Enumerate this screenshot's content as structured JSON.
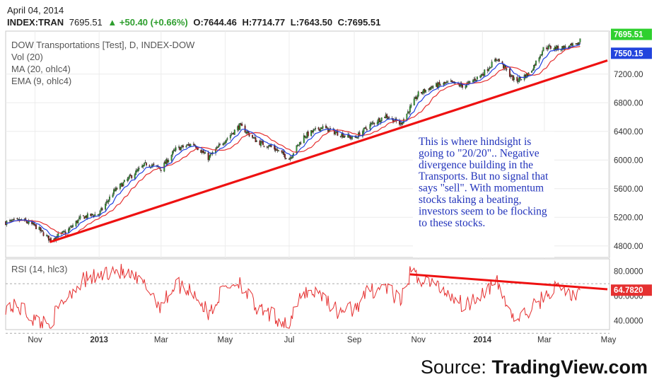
{
  "header": {
    "date": "April 04, 2014",
    "symbol": "INDEX:TRAN",
    "last": "7695.51",
    "change": "▲ +50.40 (+0.66%)",
    "open": "O:7644.46",
    "high": "H:7714.77",
    "low": "L:7643.50",
    "close": "C:7695.51"
  },
  "legend": {
    "title": "DOW Transportations [Test], D, INDEX-DOW",
    "vol": "Vol (20)",
    "ma": "MA (20, ohlc4)",
    "ema": "EMA (9, ohlc4)",
    "rsi": "RSI (14, hlc3)"
  },
  "annotation": "This is where hindsight is going to \"20/20\".. Negative divergence building in the Transports. But no signal that says \"sell\". With momentum stocks taking a beating, investors seem to be flocking to these stocks.",
  "source": {
    "prefix": "Source: ",
    "brand": "TradingView.com"
  },
  "colors": {
    "up": "#2e9e2e",
    "down": "#8b1a1a",
    "ma": "#e53030",
    "ema": "#2040e0",
    "trend": "#ee1111",
    "rsi": "#e53030"
  },
  "chart_data": {
    "type": "candlestick",
    "price_axis": {
      "ticks": [
        4800,
        5200,
        5600,
        6000,
        6400,
        6800,
        7200
      ],
      "tick_labels": [
        "4800.00",
        "5200.00",
        "5600.00",
        "6000.00",
        "6400.00",
        "6800.00",
        "7200.00"
      ],
      "range": [
        4640,
        7800
      ]
    },
    "x_labels": [
      "Nov",
      "2013",
      "Mar",
      "May",
      "Jul",
      "Sep",
      "Nov",
      "2014",
      "Mar",
      "May"
    ],
    "x_dates": [
      "2012-11-01",
      "2013-01-01",
      "2013-03-01",
      "2013-05-01",
      "2013-07-01",
      "2013-09-01",
      "2013-11-01",
      "2014-01-01",
      "2014-03-01",
      "2014-05-01"
    ],
    "x_range": [
      "2012-10-04",
      "2014-05-02"
    ],
    "price_labels": [
      {
        "text": "7695.51",
        "value": 7695.51,
        "color": "#2fd02f"
      },
      {
        "text": "7550.15",
        "value": 7550.15,
        "color": "#2244dd"
      }
    ],
    "trendline": {
      "start": [
        "2012-11-15",
        4855
      ],
      "end": [
        "2014-04-30",
        7390
      ]
    },
    "price_points": [
      [
        "2012-10-04",
        5130
      ],
      [
        "2012-10-20",
        5160
      ],
      [
        "2012-11-01",
        5080
      ],
      [
        "2012-11-15",
        4890
      ],
      [
        "2012-12-01",
        5000
      ],
      [
        "2012-12-15",
        5200
      ],
      [
        "2013-01-01",
        5250
      ],
      [
        "2013-01-15",
        5560
      ],
      [
        "2013-02-01",
        5780
      ],
      [
        "2013-02-15",
        5950
      ],
      [
        "2013-03-01",
        5880
      ],
      [
        "2013-03-15",
        6150
      ],
      [
        "2013-04-01",
        6230
      ],
      [
        "2013-04-15",
        6030
      ],
      [
        "2013-05-01",
        6280
      ],
      [
        "2013-05-15",
        6480
      ],
      [
        "2013-06-01",
        6250
      ],
      [
        "2013-06-15",
        6180
      ],
      [
        "2013-07-01",
        6020
      ],
      [
        "2013-07-15",
        6330
      ],
      [
        "2013-08-01",
        6460
      ],
      [
        "2013-08-15",
        6380
      ],
      [
        "2013-09-01",
        6300
      ],
      [
        "2013-09-15",
        6480
      ],
      [
        "2013-10-01",
        6620
      ],
      [
        "2013-10-15",
        6500
      ],
      [
        "2013-11-01",
        6920
      ],
      [
        "2013-11-15",
        7030
      ],
      [
        "2013-12-01",
        7080
      ],
      [
        "2013-12-15",
        7030
      ],
      [
        "2014-01-01",
        7200
      ],
      [
        "2014-01-15",
        7420
      ],
      [
        "2014-02-01",
        7100
      ],
      [
        "2014-02-15",
        7210
      ],
      [
        "2014-03-01",
        7580
      ],
      [
        "2014-03-15",
        7560
      ],
      [
        "2014-04-01",
        7600
      ],
      [
        "2014-04-06",
        7695.51
      ]
    ],
    "rsi": {
      "ticks": [
        40,
        60,
        80
      ],
      "tick_labels": [
        "40.0000",
        "60.0000",
        "80.0000"
      ],
      "range": [
        33,
        90
      ],
      "last": {
        "text": "64.7820",
        "value": 64.782
      },
      "trendline": {
        "start": [
          "2013-10-24",
          77.5
        ],
        "end": [
          "2014-04-30",
          65.5
        ]
      },
      "points": [
        [
          "2012-10-04",
          52
        ],
        [
          "2012-10-20",
          50
        ],
        [
          "2012-11-01",
          40
        ],
        [
          "2012-11-15",
          38
        ],
        [
          "2012-12-01",
          60
        ],
        [
          "2012-12-15",
          72
        ],
        [
          "2013-01-01",
          76
        ],
        [
          "2013-01-15",
          82
        ],
        [
          "2013-02-01",
          75
        ],
        [
          "2013-02-15",
          68
        ],
        [
          "2013-03-01",
          52
        ],
        [
          "2013-03-15",
          70
        ],
        [
          "2013-04-01",
          64
        ],
        [
          "2013-04-15",
          45
        ],
        [
          "2013-05-01",
          68
        ],
        [
          "2013-05-15",
          72
        ],
        [
          "2013-06-01",
          48
        ],
        [
          "2013-06-15",
          44
        ],
        [
          "2013-07-01",
          37
        ],
        [
          "2013-07-15",
          64
        ],
        [
          "2013-08-01",
          62
        ],
        [
          "2013-08-15",
          48
        ],
        [
          "2013-09-01",
          50
        ],
        [
          "2013-09-15",
          64
        ],
        [
          "2013-10-01",
          68
        ],
        [
          "2013-10-15",
          54
        ],
        [
          "2013-10-24",
          78
        ],
        [
          "2013-11-15",
          70
        ],
        [
          "2013-12-01",
          62
        ],
        [
          "2013-12-15",
          52
        ],
        [
          "2014-01-01",
          64
        ],
        [
          "2014-01-15",
          70
        ],
        [
          "2014-02-01",
          40
        ],
        [
          "2014-02-15",
          48
        ],
        [
          "2014-03-01",
          60
        ],
        [
          "2014-03-15",
          68
        ],
        [
          "2014-04-01",
          58
        ],
        [
          "2014-04-06",
          64.78
        ]
      ]
    }
  }
}
